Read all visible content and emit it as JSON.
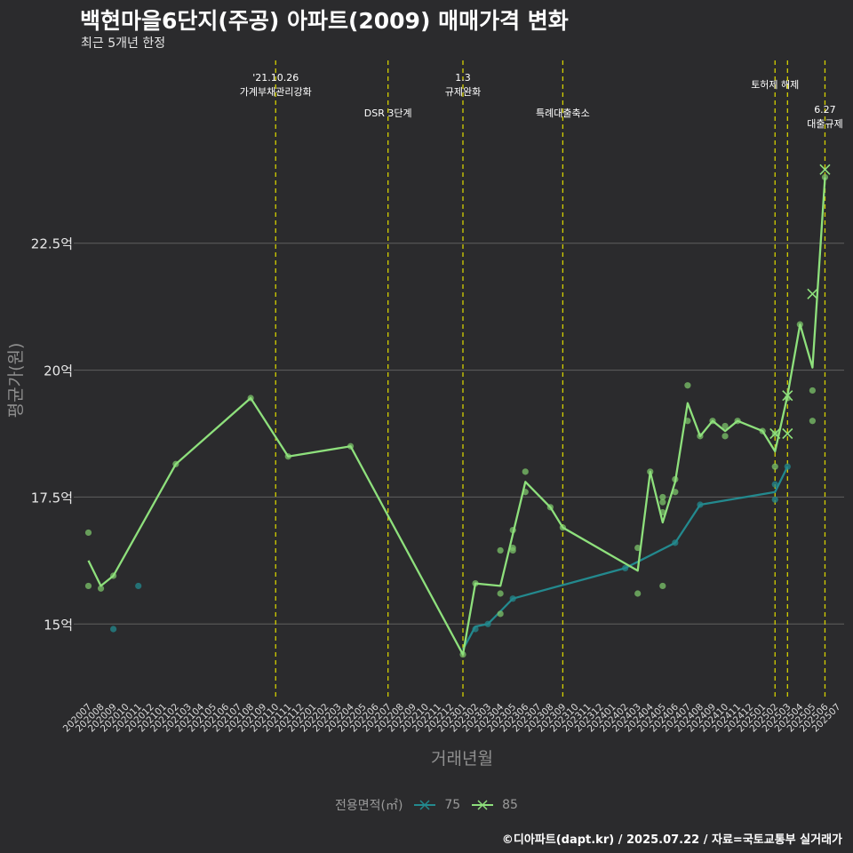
{
  "header": {
    "title": "백현마을6단지(주공) 아파트(2009) 매매가격 변화",
    "subtitle": "최근 5개년 한정"
  },
  "caption": "©디아파트(dapt.kr) / 2025.07.22 / 자료=국토교통부 실거래가",
  "colors": {
    "background": "#2b2b2d",
    "grid": "#5f5f5f",
    "event_line": "#d4d000",
    "series_75": "#23898e",
    "series_85": "#8ee07c",
    "dots_85": "#7cc46a",
    "text_light": "#ffffff",
    "text_dim": "#9a9a9a"
  },
  "legend": {
    "title": "전용면적(㎡)",
    "items": [
      {
        "label": "75",
        "color": "#23898e"
      },
      {
        "label": "85",
        "color": "#8ee07c"
      }
    ]
  },
  "chart_data": {
    "type": "line",
    "title": "백현마을6단지(주공) 아파트(2009) 매매가격 변화",
    "subtitle": "최근 5개년 한정",
    "xlabel": "거래년월",
    "ylabel": "평균가(원)",
    "ylim": [
      13.5,
      26.1
    ],
    "yticks": [
      15,
      17.5,
      20,
      22.5
    ],
    "ytick_labels": [
      "15억",
      "17.5억",
      "20억",
      "22.5억"
    ],
    "categories": [
      "202007",
      "202008",
      "202009",
      "202010",
      "202011",
      "202012",
      "202101",
      "202102",
      "202103",
      "202104",
      "202105",
      "202106",
      "202107",
      "202108",
      "202109",
      "202110",
      "202111",
      "202112",
      "202201",
      "202202",
      "202203",
      "202204",
      "202205",
      "202206",
      "202207",
      "202208",
      "202209",
      "202210",
      "202211",
      "202212",
      "202301",
      "202302",
      "202303",
      "202304",
      "202305",
      "202306",
      "202307",
      "202308",
      "202309",
      "202310",
      "202311",
      "202312",
      "202401",
      "202402",
      "202403",
      "202404",
      "202405",
      "202406",
      "202407",
      "202408",
      "202409",
      "202410",
      "202411",
      "202412",
      "202501",
      "202502",
      "202503",
      "202504",
      "202505",
      "202506",
      "202507"
    ],
    "events": [
      {
        "month": "202110",
        "label": "'21.10.26\n가계부채관리강화",
        "level": 1
      },
      {
        "month": "202207",
        "label": "DSR 3단계",
        "level": 2
      },
      {
        "month": "202301",
        "label": "1.3\n규제완화",
        "level": 1
      },
      {
        "month": "202309",
        "label": "특례대출축소",
        "level": 2
      },
      {
        "month": "202502",
        "label": "토허제 해제",
        "level": 0
      },
      {
        "month": "202503",
        "label": "",
        "level": 0
      },
      {
        "month": "202506",
        "label": "6.27\n대출규제",
        "level": 3
      }
    ],
    "series": [
      {
        "name": "75",
        "color": "#23898e",
        "line": [
          [
            "202301",
            14.5
          ],
          [
            "202302",
            14.95
          ],
          [
            "202303",
            15.0
          ],
          [
            "202304",
            15.25
          ],
          [
            "202305",
            15.5
          ],
          [
            "202402",
            16.1
          ],
          [
            "202406",
            16.6
          ],
          [
            "202408",
            17.35
          ],
          [
            "202502",
            17.6
          ],
          [
            "202503",
            18.1
          ]
        ],
        "points": [
          [
            "202009",
            14.9
          ],
          [
            "202011",
            15.75
          ],
          [
            "202302",
            14.9
          ],
          [
            "202303",
            15.0
          ],
          [
            "202305",
            15.5
          ],
          [
            "202402",
            16.1
          ],
          [
            "202406",
            16.6
          ],
          [
            "202408",
            17.35
          ],
          [
            "202502",
            17.45
          ],
          [
            "202502",
            17.75
          ],
          [
            "202503",
            18.1
          ]
        ],
        "crosses": []
      },
      {
        "name": "85",
        "color": "#8ee07c",
        "line": [
          [
            "202007",
            16.25
          ],
          [
            "202008",
            15.75
          ],
          [
            "202009",
            15.95
          ],
          [
            "202102",
            18.15
          ],
          [
            "202108",
            19.45
          ],
          [
            "202111",
            18.3
          ],
          [
            "202204",
            18.5
          ],
          [
            "202301",
            14.4
          ],
          [
            "202302",
            15.8
          ],
          [
            "202304",
            15.75
          ],
          [
            "202306",
            17.8
          ],
          [
            "202308",
            17.3
          ],
          [
            "202309",
            16.9
          ],
          [
            "202403",
            16.05
          ],
          [
            "202404",
            18.0
          ],
          [
            "202405",
            17.0
          ],
          [
            "202406",
            17.8
          ],
          [
            "202407",
            19.35
          ],
          [
            "202408",
            18.7
          ],
          [
            "202409",
            19.0
          ],
          [
            "202410",
            18.8
          ],
          [
            "202411",
            19.0
          ],
          [
            "202501",
            18.8
          ],
          [
            "202502",
            18.4
          ],
          [
            "202503",
            19.5
          ],
          [
            "202504",
            20.9
          ],
          [
            "202505",
            20.05
          ],
          [
            "202506",
            23.8
          ]
        ],
        "points": [
          [
            "202007",
            16.8
          ],
          [
            "202007",
            15.75
          ],
          [
            "202008",
            15.7
          ],
          [
            "202009",
            15.95
          ],
          [
            "202102",
            18.15
          ],
          [
            "202108",
            19.45
          ],
          [
            "202111",
            18.3
          ],
          [
            "202204",
            18.5
          ],
          [
            "202301",
            14.4
          ],
          [
            "202302",
            15.8
          ],
          [
            "202304",
            16.45
          ],
          [
            "202304",
            15.6
          ],
          [
            "202304",
            15.2
          ],
          [
            "202305",
            16.85
          ],
          [
            "202305",
            16.5
          ],
          [
            "202305",
            16.45
          ],
          [
            "202306",
            18.0
          ],
          [
            "202306",
            17.6
          ],
          [
            "202308",
            17.3
          ],
          [
            "202309",
            16.9
          ],
          [
            "202403",
            16.5
          ],
          [
            "202403",
            15.6
          ],
          [
            "202404",
            18.0
          ],
          [
            "202405",
            17.5
          ],
          [
            "202405",
            17.4
          ],
          [
            "202405",
            17.2
          ],
          [
            "202405",
            15.75
          ],
          [
            "202406",
            17.85
          ],
          [
            "202406",
            17.6
          ],
          [
            "202407",
            19.7
          ],
          [
            "202407",
            19.0
          ],
          [
            "202408",
            18.7
          ],
          [
            "202409",
            19.0
          ],
          [
            "202410",
            18.9
          ],
          [
            "202410",
            18.7
          ],
          [
            "202411",
            19.0
          ],
          [
            "202501",
            18.8
          ],
          [
            "202502",
            18.75
          ],
          [
            "202502",
            18.1
          ],
          [
            "202503",
            19.45
          ],
          [
            "202504",
            20.9
          ],
          [
            "202505",
            19.6
          ],
          [
            "202505",
            19.0
          ],
          [
            "202506",
            23.8
          ]
        ],
        "crosses": [
          [
            "202502",
            18.75
          ],
          [
            "202503",
            18.75
          ],
          [
            "202503",
            19.5
          ],
          [
            "202505",
            21.5
          ],
          [
            "202506",
            23.95
          ]
        ]
      }
    ]
  }
}
